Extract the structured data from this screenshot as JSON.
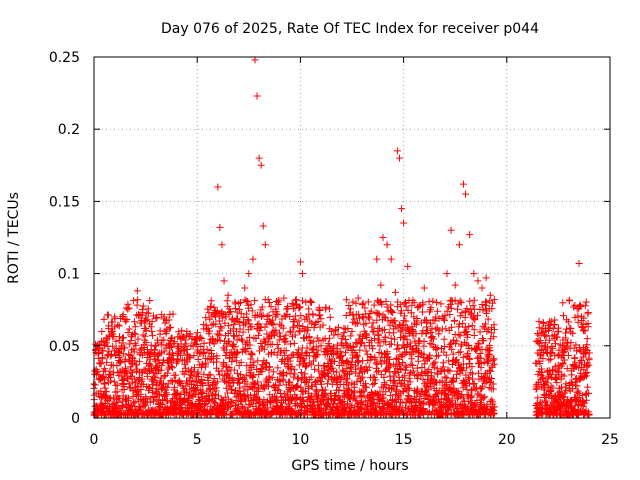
{
  "chart_data": {
    "type": "scatter",
    "title": "Day 076 of 2025, Rate Of TEC Index for receiver p044",
    "xlabel": "GPS time / hours",
    "ylabel": "ROTI / TECUs",
    "xlim": [
      0,
      25
    ],
    "ylim": [
      0,
      0.25
    ],
    "xticks": [
      0,
      5,
      10,
      15,
      20,
      25
    ],
    "xtick_labels": [
      "0",
      "5",
      "10",
      "15",
      "20",
      "25"
    ],
    "yticks": [
      0,
      0.05,
      0.1,
      0.15,
      0.2,
      0.25
    ],
    "ytick_labels": [
      "0",
      "0.05",
      "0.1",
      "0.15",
      "0.2",
      "0.25"
    ],
    "grid": true,
    "marker": "+",
    "color": "#ff0000",
    "series": [
      {
        "name": "ROTI",
        "x": [
          0.1,
          0.2,
          0.4,
          0.5,
          0.7,
          0.9,
          1.0,
          1.2,
          1.4,
          1.5,
          1.7,
          2.0,
          2.1,
          2.3,
          2.5,
          2.6,
          2.8,
          3.0,
          3.2,
          3.4,
          3.5,
          3.6,
          3.8,
          4.0,
          4.2,
          4.5,
          4.7,
          5.0,
          5.3,
          5.6,
          5.9,
          6.0,
          6.1,
          6.2,
          6.3,
          6.4,
          6.5,
          6.7,
          6.9,
          7.1,
          7.3,
          7.5,
          7.7,
          7.8,
          7.9,
          8.0,
          8.1,
          8.2,
          8.3,
          8.5,
          8.8,
          9.0,
          9.2,
          9.5,
          9.8,
          10.0,
          10.1,
          10.3,
          10.6,
          10.9,
          11.0,
          11.2,
          11.5,
          11.8,
          12.1,
          12.3,
          12.5,
          12.8,
          13.0,
          13.2,
          13.5,
          13.7,
          13.9,
          14.0,
          14.2,
          14.4,
          14.6,
          14.7,
          14.8,
          14.9,
          15.0,
          15.2,
          15.4,
          15.6,
          15.8,
          16.0,
          16.3,
          16.6,
          16.9,
          17.1,
          17.3,
          17.5,
          17.7,
          17.9,
          18.0,
          18.2,
          18.4,
          18.6,
          18.8,
          19.0,
          19.2,
          19.4,
          21.4,
          21.5,
          21.7,
          21.9,
          22.1,
          22.3,
          22.5,
          22.7,
          22.9,
          23.1,
          23.3,
          23.5,
          23.7,
          23.9,
          24.0
        ],
        "y": [
          0.032,
          0.045,
          0.041,
          0.05,
          0.028,
          0.06,
          0.07,
          0.045,
          0.052,
          0.068,
          0.04,
          0.058,
          0.088,
          0.048,
          0.062,
          0.045,
          0.06,
          0.05,
          0.058,
          0.07,
          0.05,
          0.04,
          0.045,
          0.038,
          0.055,
          0.06,
          0.05,
          0.055,
          0.045,
          0.052,
          0.065,
          0.16,
          0.132,
          0.12,
          0.095,
          0.07,
          0.085,
          0.05,
          0.06,
          0.08,
          0.09,
          0.1,
          0.11,
          0.248,
          0.223,
          0.18,
          0.175,
          0.133,
          0.12,
          0.08,
          0.07,
          0.065,
          0.083,
          0.06,
          0.082,
          0.108,
          0.1,
          0.07,
          0.072,
          0.075,
          0.05,
          0.055,
          0.06,
          0.045,
          0.05,
          0.062,
          0.06,
          0.083,
          0.07,
          0.058,
          0.048,
          0.11,
          0.092,
          0.125,
          0.12,
          0.11,
          0.087,
          0.185,
          0.18,
          0.145,
          0.135,
          0.105,
          0.078,
          0.05,
          0.078,
          0.09,
          0.075,
          0.08,
          0.07,
          0.1,
          0.13,
          0.092,
          0.12,
          0.162,
          0.155,
          0.127,
          0.1,
          0.095,
          0.09,
          0.097,
          0.085,
          0.082,
          0.038,
          0.045,
          0.05,
          0.06,
          0.065,
          0.055,
          0.06,
          0.05,
          0.068,
          0.062,
          0.078,
          0.107,
          0.065,
          0.055,
          0.045
        ]
      }
    ],
    "data_gap": [
      19.4,
      21.4
    ]
  }
}
